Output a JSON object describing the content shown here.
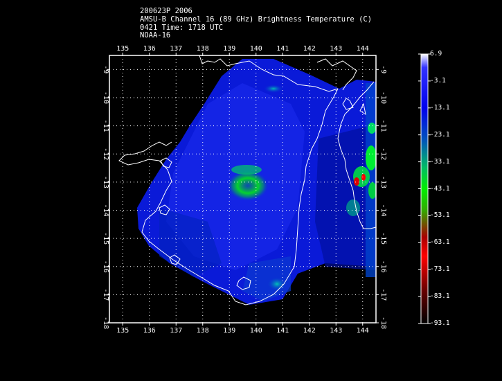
{
  "header": {
    "line1": "200623P 2006",
    "line2": "AMSU-B Channel 16 (89 GHz) Brightness Temperature (C)",
    "line3": "0421 Time: 1718 UTC",
    "line4": "NOAA-16"
  },
  "map": {
    "lon_range": [
      134.5,
      144.5
    ],
    "lat_range": [
      -8.5,
      -18.0
    ],
    "lon_ticks": [
      "135",
      "136",
      "137",
      "138",
      "139",
      "140",
      "141",
      "142",
      "143",
      "144"
    ],
    "lat_ticks": [
      "-9",
      "-10",
      "-11",
      "-12",
      "-13",
      "-14",
      "-15",
      "-16",
      "-17",
      "-18"
    ],
    "grid": true
  },
  "colorbar": {
    "labels": [
      "6.9",
      "-3.1",
      "-13.1",
      "-23.1",
      "-33.1",
      "-43.1",
      "-53.1",
      "-63.1",
      "-73.1",
      "-83.1",
      "-93.1"
    ],
    "colors": [
      "#ffffff",
      "#0000ff",
      "#0033dd",
      "#00aa88",
      "#00cc44",
      "#00ff00",
      "#33aa00",
      "#cc0000",
      "#ff0000",
      "#660000",
      "#000000"
    ]
  }
}
